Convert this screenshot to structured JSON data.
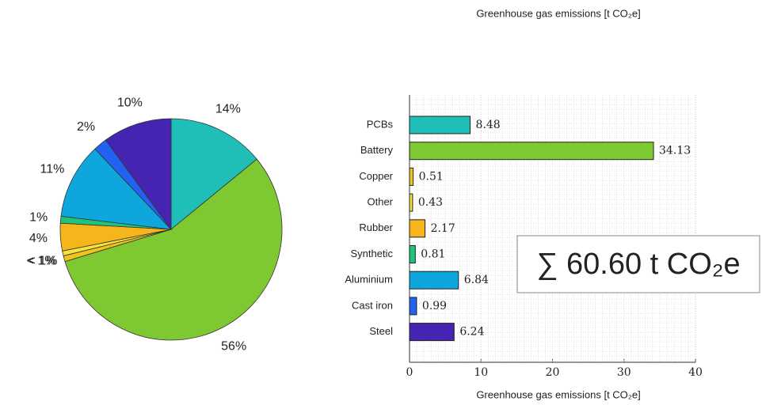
{
  "chart_data": [
    {
      "type": "pie",
      "values": [
        14,
        56,
        0.84,
        0.71,
        4,
        1,
        11,
        2,
        10
      ],
      "value_labels": [
        "14%",
        "56%",
        "< 1%",
        "< 1%",
        "4%",
        "1%",
        "11%",
        "2%",
        "10%"
      ],
      "colors": [
        "#1fbfb8",
        "#7ec832",
        "#f0c419",
        "#f5e23c",
        "#f6b51b",
        "#1fc47a",
        "#0ea6dc",
        "#2262f0",
        "#4424b0"
      ]
    },
    {
      "type": "barh",
      "title": "Greenhouse gas emissions [t CO₂e]",
      "xlabel": "Greenhouse gas emissions [t CO₂e]",
      "annotation": "∑ 60.60 t CO₂e",
      "categories": [
        "PCBs",
        "Battery",
        "Copper",
        "Other",
        "Rubber",
        "Synthetic",
        "Aluminium",
        "Cast iron",
        "Steel"
      ],
      "values": [
        8.48,
        34.13,
        0.51,
        0.43,
        2.17,
        0.81,
        6.84,
        0.99,
        6.24
      ],
      "colors": [
        "#1fbfb8",
        "#7ec832",
        "#f0c419",
        "#f5e23c",
        "#f6b51b",
        "#1fc47a",
        "#0ea6dc",
        "#2262f0",
        "#4424b0"
      ],
      "xlim": [
        0,
        40
      ],
      "xticks": [
        0,
        10,
        20,
        30,
        40
      ],
      "grid": true
    }
  ]
}
